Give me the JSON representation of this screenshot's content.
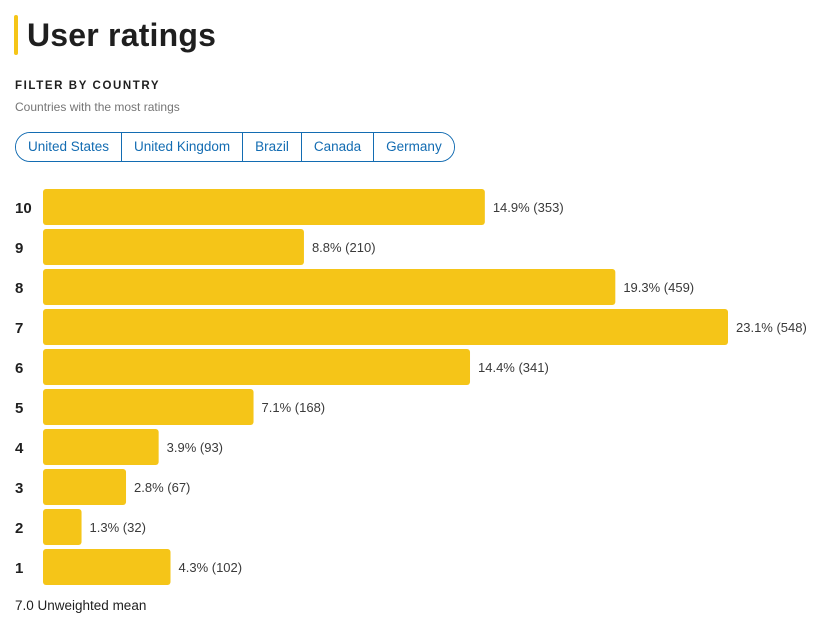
{
  "header": {
    "title": "User ratings"
  },
  "filter": {
    "label": "FILTER BY COUNTRY",
    "sublabel": "Countries with the most ratings",
    "countries": [
      "United States",
      "United Kingdom",
      "Brazil",
      "Canada",
      "Germany"
    ]
  },
  "colors": {
    "accent": "#f5c518",
    "link": "#136cb2"
  },
  "chart_data": {
    "type": "bar",
    "orientation": "horizontal",
    "categories": [
      "10",
      "9",
      "8",
      "7",
      "6",
      "5",
      "4",
      "3",
      "2",
      "1"
    ],
    "values_percent": [
      14.9,
      8.8,
      19.3,
      23.1,
      14.4,
      7.1,
      3.9,
      2.8,
      1.3,
      4.3
    ],
    "counts": [
      353,
      210,
      459,
      548,
      341,
      168,
      93,
      67,
      32,
      102
    ],
    "data_labels": [
      "14.9% (353)",
      "8.8% (210)",
      "19.3% (459)",
      "23.1% (548)",
      "14.4% (341)",
      "7.1% (168)",
      "3.9% (93)",
      "2.8% (67)",
      "1.3% (32)",
      "4.3% (102)"
    ],
    "bar_color": "#f5c518"
  },
  "summary": {
    "mean_text": "7.0 Unweighted mean"
  }
}
